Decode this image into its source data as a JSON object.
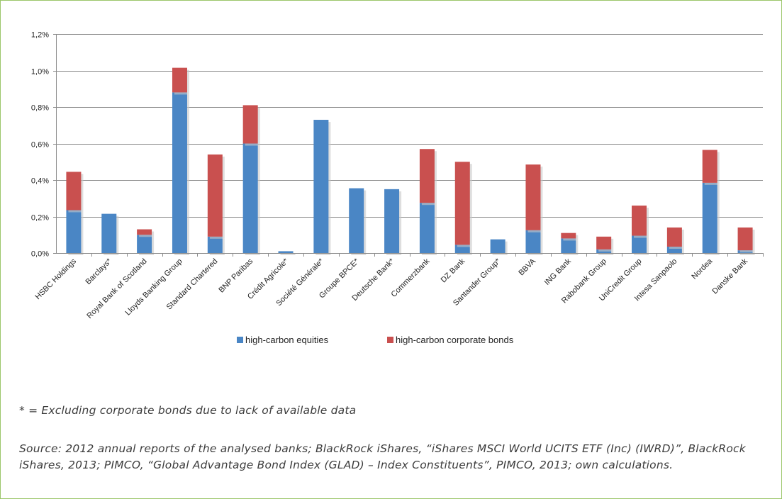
{
  "chart_data": {
    "type": "bar",
    "stacked": true,
    "categories": [
      "HSBC Holdings",
      "Barclays*",
      "Royal Bank of Scotland",
      "Lloyds Banking Group",
      "Standard Chartered",
      "BNP Paribas",
      "Crédit Agricole*",
      "Société Générale*",
      "Groupe BPCE*",
      "Deutsche Bank*",
      "Commerzbank",
      "DZ Bank",
      "Santander Group*",
      "BBVA",
      "ING Bank",
      "Rabobank Group",
      "UniCredit Group",
      "Intesa Sanpaolo",
      "Nordea",
      "Danske Bank"
    ],
    "series": [
      {
        "name": "high-carbon equities",
        "color": "#4a86c5",
        "values": [
          0.235,
          0.215,
          0.1,
          0.88,
          0.09,
          0.6,
          0.01,
          0.73,
          0.355,
          0.35,
          0.275,
          0.045,
          0.075,
          0.125,
          0.08,
          0.02,
          0.095,
          0.035,
          0.385,
          0.015
        ]
      },
      {
        "name": "high-carbon corporate bonds",
        "color": "#c9504f",
        "values": [
          0.21,
          0.0,
          0.03,
          0.135,
          0.45,
          0.21,
          0.0,
          0.0,
          0.0,
          0.0,
          0.295,
          0.455,
          0.0,
          0.36,
          0.03,
          0.07,
          0.165,
          0.105,
          0.18,
          0.125
        ]
      }
    ],
    "yticks": [
      "0,0%",
      "0,2%",
      "0,4%",
      "0,6%",
      "0,8%",
      "1,0%",
      "1,2%"
    ],
    "ylim": [
      0,
      1.2
    ],
    "grid": true,
    "legend_position": "bottom"
  },
  "footnote": "* = Excluding corporate bonds due to lack of available data",
  "source": "Source: 2012 annual reports of the analysed banks; BlackRock iShares, “iShares MSCI World UCITS ETF (Inc) (IWRD)”, BlackRock iShares, 2013; PIMCO, “Global Advantage Bond Index (GLAD) – Index Constituents”, PIMCO, 2013; own calculations."
}
